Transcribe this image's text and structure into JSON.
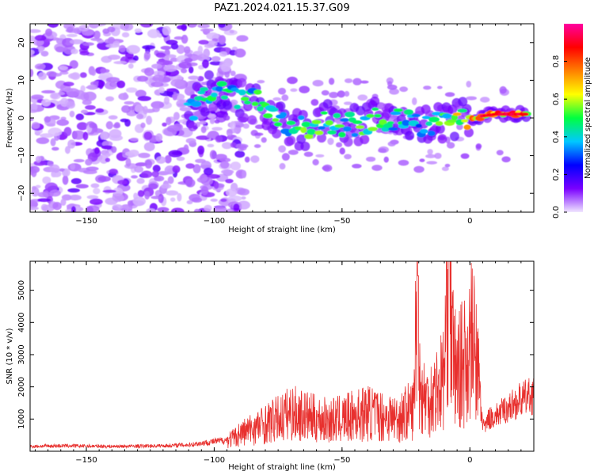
{
  "title": "PAZ1.2024.021.15.37.G09",
  "chart_data": [
    {
      "type": "heatmap",
      "title": "PAZ1.2024.021.15.37.G09",
      "xlabel": "Height of straight line (km)",
      "ylabel": "Frequency (Hz)",
      "xlim": [
        -172,
        25
      ],
      "ylim": [
        -25,
        25
      ],
      "xticks": [
        -150,
        -100,
        -50,
        0
      ],
      "yticks": [
        -20,
        -10,
        0,
        10,
        20
      ],
      "colorbar": {
        "label": "Normalized spectral amplitude",
        "range": [
          0,
          1
        ],
        "ticks": [
          0.0,
          0.2,
          0.4,
          0.6,
          0.8
        ],
        "colormap": [
          "#f0e6ff",
          "#7a00ff",
          "#0000ff",
          "#00c8ff",
          "#00ff40",
          "#ffff00",
          "#ff8000",
          "#ff0000",
          "#ff00a0"
        ]
      },
      "ridge": [
        {
          "x": -110,
          "y": 1,
          "amp": 0.4
        },
        {
          "x": -102,
          "y": 7,
          "amp": 0.5
        },
        {
          "x": -90,
          "y": 5,
          "amp": 0.5
        },
        {
          "x": -82,
          "y": 4,
          "amp": 0.55
        },
        {
          "x": -72,
          "y": -2,
          "amp": 0.5
        },
        {
          "x": -65,
          "y": -3,
          "amp": 0.55
        },
        {
          "x": -55,
          "y": -1,
          "amp": 0.55
        },
        {
          "x": -45,
          "y": -2,
          "amp": 0.55
        },
        {
          "x": -35,
          "y": 0,
          "amp": 0.55
        },
        {
          "x": -25,
          "y": -1,
          "amp": 0.5
        },
        {
          "x": -15,
          "y": -2,
          "amp": 0.5
        },
        {
          "x": -5,
          "y": 0,
          "amp": 0.7
        },
        {
          "x": 0,
          "y": 0,
          "amp": 0.85
        },
        {
          "x": 10,
          "y": 1,
          "amp": 0.9
        },
        {
          "x": 22,
          "y": 1,
          "amp": 0.9
        }
      ]
    },
    {
      "type": "line",
      "xlabel": "Height of straight line (km)",
      "ylabel": "SNR (10 * v/v)",
      "xlim": [
        -172,
        25
      ],
      "ylim": [
        0,
        5900
      ],
      "xticks": [
        -150,
        -100,
        -50,
        0
      ],
      "yticks": [
        1000,
        2000,
        3000,
        4000,
        5000
      ],
      "color": "#e8302e",
      "series": [
        {
          "x": [
            -172,
            -160,
            -150,
            -140,
            -130,
            -120,
            -110,
            -100,
            -95,
            -92,
            -90,
            -85,
            -80,
            -75,
            -70,
            -65,
            -60,
            -55,
            -50,
            -45,
            -40,
            -35,
            -30,
            -28,
            -25,
            -22,
            -20.5,
            -20,
            -19,
            -17,
            -15,
            -12,
            -10,
            -9,
            -8,
            -7,
            -6,
            -5,
            -3,
            -1,
            1,
            2,
            3,
            4,
            5,
            6,
            7,
            10,
            15,
            20,
            25
          ],
          "y": [
            150,
            170,
            160,
            150,
            160,
            170,
            200,
            300,
            350,
            420,
            550,
            700,
            850,
            1000,
            1200,
            1100,
            1000,
            950,
            1000,
            1100,
            1200,
            1100,
            1050,
            1000,
            1200,
            1300,
            5400,
            2500,
            1800,
            1600,
            1700,
            2000,
            2400,
            4700,
            5900,
            3200,
            2700,
            2400,
            2700,
            3000,
            3500,
            3000,
            2500,
            1700,
            900,
            700,
            1000,
            1100,
            1350,
            1600,
            1750
          ]
        }
      ]
    }
  ]
}
